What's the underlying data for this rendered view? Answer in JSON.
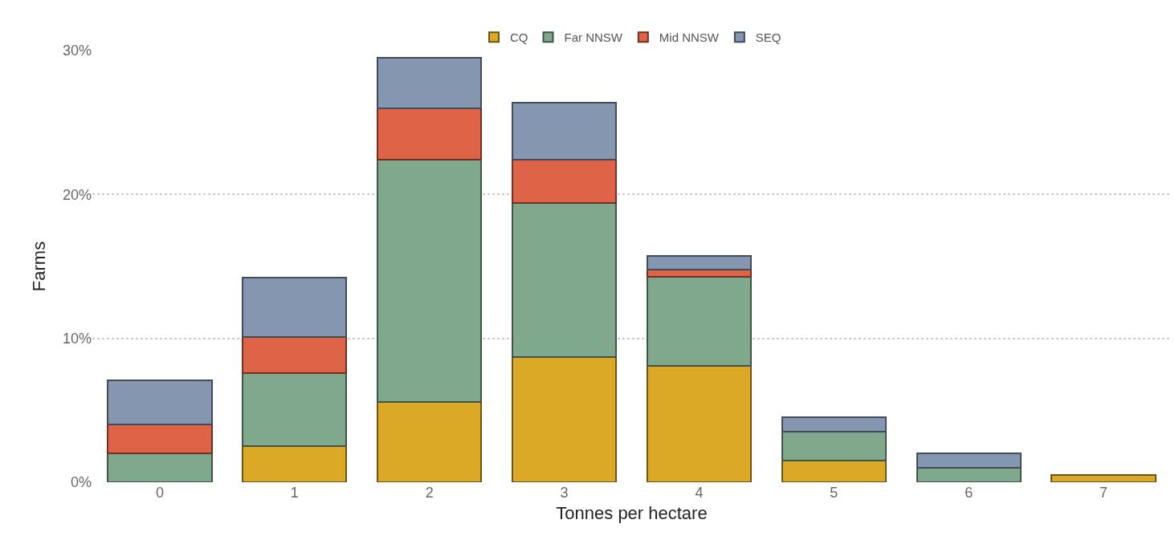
{
  "chart_data": {
    "type": "bar",
    "stacked": true,
    "xlabel": "Tonnes per hectare",
    "ylabel": "Farms",
    "categories": [
      "0",
      "1",
      "2",
      "3",
      "4",
      "5",
      "6",
      "7"
    ],
    "series": [
      {
        "name": "CQ",
        "color": "#dba926",
        "values": [
          null,
          2.5,
          5.6,
          8.7,
          8.1,
          1.5,
          null,
          0.5
        ]
      },
      {
        "name": "Far NNSW",
        "color": "#80a88c",
        "values": [
          2.0,
          5.1,
          16.8,
          10.7,
          6.2,
          2.0,
          1.0,
          null
        ]
      },
      {
        "name": "Mid NNSW",
        "color": "#df6347",
        "values": [
          2.0,
          2.5,
          3.6,
          3.0,
          0.5,
          null,
          null,
          null
        ]
      },
      {
        "name": "SEQ",
        "color": "#8596b0",
        "values": [
          3.1,
          4.1,
          3.5,
          4.0,
          0.9,
          1.0,
          1.0,
          null
        ]
      }
    ],
    "ylim": [
      0,
      30
    ],
    "yticks": [
      {
        "value": 0,
        "label": "0%"
      },
      {
        "value": 10,
        "label": "10%"
      },
      {
        "value": 20,
        "label": "20%"
      },
      {
        "value": 30,
        "label": "30%"
      }
    ],
    "grid": "y",
    "legend": "top"
  }
}
